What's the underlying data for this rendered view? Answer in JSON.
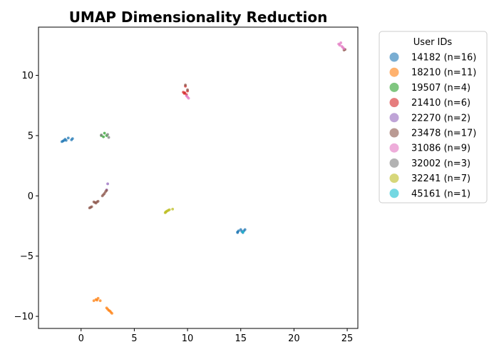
{
  "chart_data": {
    "type": "scatter",
    "title": "UMAP Dimensionality Reduction",
    "xlabel": "",
    "ylabel": "",
    "xlim": [
      -4,
      26
    ],
    "ylim": [
      -11,
      14
    ],
    "x_ticks": [
      0,
      5,
      10,
      15,
      20,
      25
    ],
    "y_ticks": [
      -10,
      -5,
      0,
      5,
      10
    ],
    "grid": false,
    "legend_title": "User IDs",
    "legend_position": "outside-right",
    "series": [
      {
        "name": "14182 (n=16)",
        "color": "#1f77b4",
        "points": [
          [
            -1.8,
            4.5
          ],
          [
            -1.6,
            4.6
          ],
          [
            -1.5,
            4.7
          ],
          [
            -1.7,
            4.55
          ],
          [
            -1.2,
            4.8
          ],
          [
            -0.9,
            4.65
          ],
          [
            -0.8,
            4.75
          ],
          [
            -1.4,
            4.6
          ],
          [
            14.7,
            -3.0
          ],
          [
            14.8,
            -2.9
          ],
          [
            15.0,
            -2.8
          ],
          [
            15.1,
            -2.95
          ],
          [
            15.2,
            -3.05
          ],
          [
            15.3,
            -2.9
          ],
          [
            15.4,
            -2.8
          ],
          [
            14.7,
            -3.05
          ]
        ]
      },
      {
        "name": "18210 (n=11)",
        "color": "#ff7f0e",
        "points": [
          [
            1.2,
            -8.7
          ],
          [
            1.4,
            -8.6
          ],
          [
            1.6,
            -8.5
          ],
          [
            1.8,
            -8.7
          ],
          [
            2.4,
            -9.3
          ],
          [
            2.5,
            -9.4
          ],
          [
            2.6,
            -9.5
          ],
          [
            2.7,
            -9.55
          ],
          [
            2.8,
            -9.65
          ],
          [
            2.9,
            -9.75
          ],
          [
            1.5,
            -8.65
          ]
        ]
      },
      {
        "name": "19507 (n=4)",
        "color": "#2ca02c",
        "points": [
          [
            1.9,
            5.0
          ],
          [
            2.2,
            5.2
          ],
          [
            2.4,
            5.0
          ],
          [
            2.1,
            4.9
          ]
        ]
      },
      {
        "name": "21410 (n=6)",
        "color": "#d62728",
        "points": [
          [
            9.6,
            8.6
          ],
          [
            9.7,
            8.5
          ],
          [
            9.8,
            9.1
          ],
          [
            9.9,
            8.4
          ],
          [
            10.0,
            8.7
          ],
          [
            9.75,
            8.55
          ]
        ]
      },
      {
        "name": "22270 (n=2)",
        "color": "#9467bd",
        "points": [
          [
            2.4,
            0.5
          ],
          [
            2.5,
            1.0
          ]
        ]
      },
      {
        "name": "23478 (n=17)",
        "color": "#8c564b",
        "points": [
          [
            0.8,
            -1.0
          ],
          [
            0.9,
            -0.95
          ],
          [
            1.0,
            -0.9
          ],
          [
            1.2,
            -0.5
          ],
          [
            1.3,
            -0.55
          ],
          [
            1.4,
            -0.6
          ],
          [
            1.5,
            -0.5
          ],
          [
            1.6,
            -0.45
          ],
          [
            2.0,
            0.0
          ],
          [
            2.1,
            0.1
          ],
          [
            2.2,
            0.2
          ],
          [
            2.3,
            0.35
          ],
          [
            2.4,
            0.45
          ],
          [
            9.8,
            9.2
          ],
          [
            10.0,
            8.8
          ],
          [
            24.7,
            12.1
          ],
          [
            24.8,
            12.15
          ]
        ]
      },
      {
        "name": "31086 (n=9)",
        "color": "#e377c2",
        "points": [
          [
            9.9,
            8.3
          ],
          [
            10.0,
            8.2
          ],
          [
            10.1,
            8.1
          ],
          [
            24.2,
            12.6
          ],
          [
            24.3,
            12.5
          ],
          [
            24.4,
            12.7
          ],
          [
            24.5,
            12.4
          ],
          [
            24.6,
            12.3
          ],
          [
            24.7,
            12.2
          ]
        ]
      },
      {
        "name": "32002 (n=3)",
        "color": "#7f7f7f",
        "points": [
          [
            2.6,
            4.85
          ],
          [
            2.5,
            5.1
          ],
          [
            1.9,
            5.05
          ]
        ]
      },
      {
        "name": "32241 (n=7)",
        "color": "#bcbd22",
        "points": [
          [
            7.9,
            -1.4
          ],
          [
            8.0,
            -1.3
          ],
          [
            8.1,
            -1.25
          ],
          [
            8.2,
            -1.2
          ],
          [
            8.3,
            -1.15
          ],
          [
            7.95,
            -1.35
          ],
          [
            8.6,
            -1.1
          ]
        ]
      },
      {
        "name": "45161 (n=1)",
        "color": "#17becf",
        "points": [
          [
            15.2,
            -3.0
          ]
        ]
      }
    ]
  }
}
